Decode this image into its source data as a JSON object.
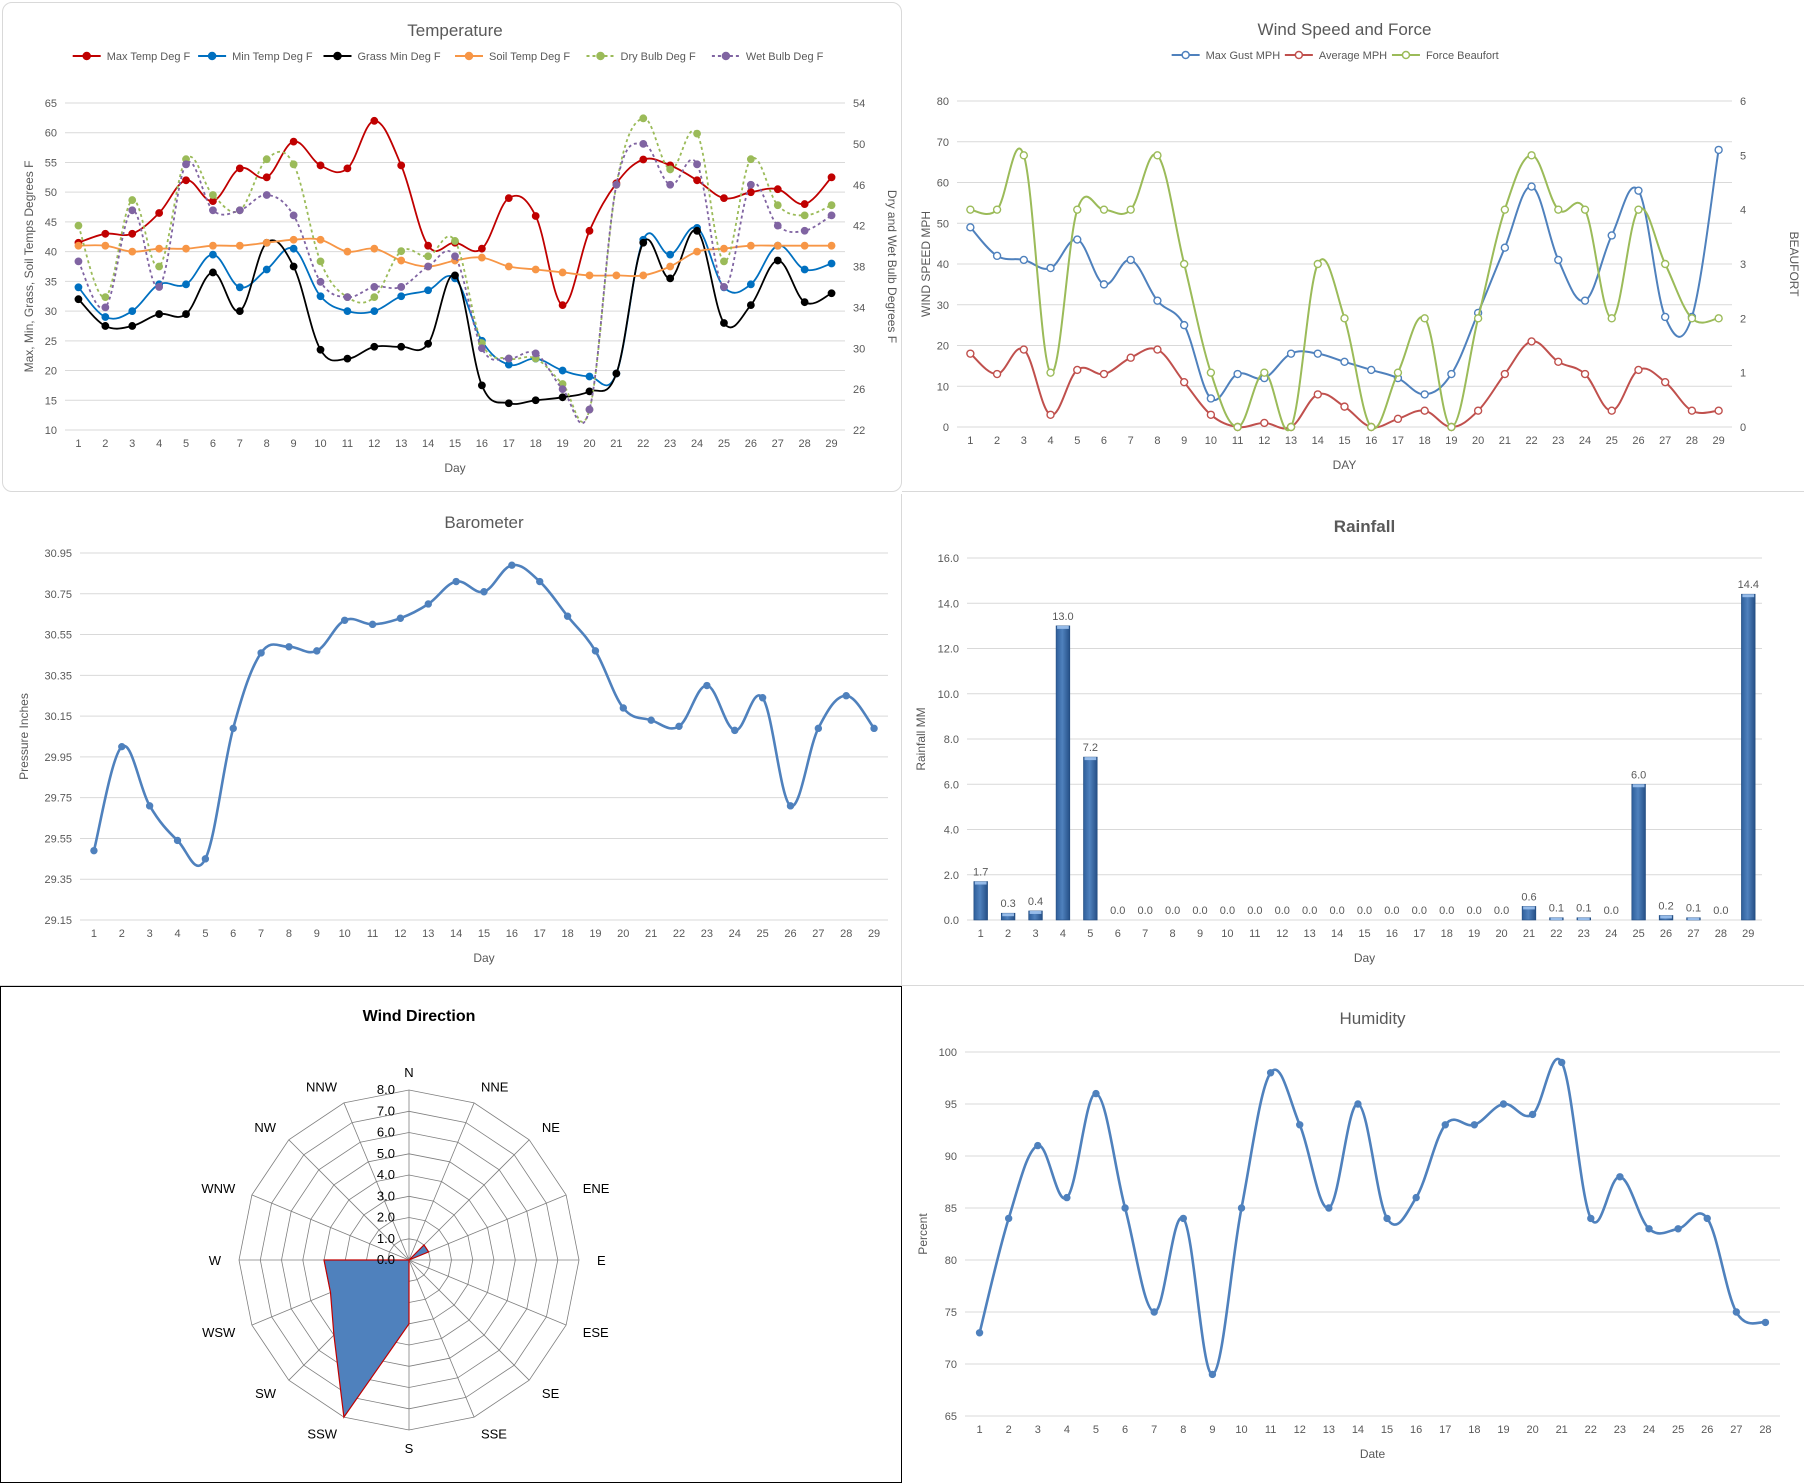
{
  "chart_data": [
    {
      "id": "temperature",
      "type": "line",
      "title": "Temperature",
      "xlabel": "Day",
      "ylabel": "Max, Min, Grass, Soil Temps Degrees F",
      "y2label": "Dry and Wet Bulb Degrees F",
      "ylim": [
        10,
        65
      ],
      "y2lim": [
        22,
        54
      ],
      "yticks": [
        "10",
        "15",
        "20",
        "25",
        "30",
        "35",
        "40",
        "45",
        "50",
        "55",
        "60",
        "65"
      ],
      "y2ticks": [
        "22",
        "26",
        "30",
        "34",
        "38",
        "42",
        "46",
        "50",
        "54"
      ],
      "x": [
        "1",
        "2",
        "3",
        "4",
        "5",
        "6",
        "7",
        "8",
        "9",
        "10",
        "11",
        "12",
        "13",
        "14",
        "15",
        "16",
        "17",
        "18",
        "19",
        "20",
        "21",
        "22",
        "23",
        "24",
        "25",
        "26",
        "27",
        "28",
        "29"
      ],
      "legend_position": "top",
      "grid": true,
      "series": [
        {
          "name": "Max Temp Deg F",
          "color": "#c00000",
          "axis": "left",
          "dash": false,
          "values": [
            41.5,
            43,
            43,
            46.5,
            52,
            48.5,
            54,
            52.5,
            58.5,
            54.5,
            54,
            62,
            54.5,
            41,
            41.5,
            40.5,
            49,
            46,
            31,
            43.5,
            51.5,
            55.5,
            54.5,
            52,
            49,
            50,
            50.5,
            48,
            52.5
          ]
        },
        {
          "name": "Min Temp Deg F",
          "color": "#0070c0",
          "axis": "left",
          "dash": false,
          "values": [
            34,
            29,
            30,
            34.5,
            34.5,
            39.5,
            34,
            37,
            40.5,
            32.5,
            30,
            30,
            32.5,
            33.5,
            35.5,
            25,
            21,
            22,
            20,
            19,
            19.5,
            42,
            39.5,
            44,
            34,
            34.5,
            41,
            37,
            38
          ]
        },
        {
          "name": "Grass Min Deg F",
          "color": "#000000",
          "axis": "left",
          "dash": false,
          "values": [
            32,
            27.5,
            27.5,
            29.5,
            29.5,
            36.5,
            30,
            41.5,
            37.5,
            23.5,
            22,
            24,
            24,
            24.5,
            36,
            17.5,
            14.5,
            15,
            15.5,
            16.5,
            19.5,
            41.5,
            35.5,
            43.5,
            28,
            31,
            38.5,
            31.5,
            33
          ]
        },
        {
          "name": "Soil Temp Deg F",
          "color": "#f79646",
          "axis": "left",
          "dash": false,
          "values": [
            41,
            41,
            40,
            40.5,
            40.5,
            41,
            41,
            41.5,
            42,
            42,
            40,
            40.5,
            38.5,
            37.5,
            38.5,
            39,
            37.5,
            37,
            36.5,
            36,
            36,
            36,
            37.5,
            40,
            40.5,
            41,
            41,
            41,
            41
          ]
        },
        {
          "name": "Dry Bulb Deg F",
          "color": "#9bbb59",
          "axis": "right",
          "dash": true,
          "values": [
            42,
            35,
            44.5,
            38,
            48.5,
            45,
            43.5,
            48.5,
            48,
            38.5,
            35,
            35,
            39.5,
            39,
            40.5,
            30.5,
            29,
            29,
            26.5,
            24,
            46,
            52.5,
            47.5,
            51,
            38.5,
            48.5,
            44,
            43,
            44
          ]
        },
        {
          "name": "Wet Bulb Deg F",
          "color": "#8064a2",
          "axis": "right",
          "dash": true,
          "values": [
            38.5,
            34,
            43.5,
            36,
            48,
            43.5,
            43.5,
            45,
            43,
            36.5,
            35,
            36,
            36,
            38,
            39,
            30,
            29,
            29.5,
            26,
            24,
            46,
            50,
            46,
            48,
            36,
            46,
            42,
            41.5,
            43
          ]
        }
      ]
    },
    {
      "id": "wind",
      "type": "line",
      "title": "Wind Speed and Force",
      "xlabel": "DAY",
      "ylabel": "WIND SPEED MPH",
      "y2label": "BEAUFORT",
      "ylim": [
        0,
        80
      ],
      "y2lim": [
        0,
        6
      ],
      "yticks": [
        "0",
        "10",
        "20",
        "30",
        "40",
        "50",
        "60",
        "70",
        "80"
      ],
      "y2ticks": [
        "0",
        "1",
        "2",
        "3",
        "4",
        "5",
        "6"
      ],
      "x": [
        "1",
        "2",
        "3",
        "4",
        "5",
        "6",
        "7",
        "8",
        "9",
        "10",
        "11",
        "12",
        "13",
        "14",
        "15",
        "16",
        "17",
        "18",
        "19",
        "20",
        "21",
        "22",
        "23",
        "24",
        "25",
        "26",
        "27",
        "28",
        "29"
      ],
      "legend_position": "top",
      "grid": true,
      "series": [
        {
          "name": "Max Gust MPH",
          "color": "#4f81bd",
          "axis": "left",
          "values": [
            49,
            42,
            41,
            39,
            46,
            35,
            41,
            31,
            25,
            7,
            13,
            12,
            18,
            18,
            16,
            14,
            12,
            8,
            13,
            28,
            44,
            59,
            41,
            31,
            47,
            58,
            27,
            27,
            68
          ]
        },
        {
          "name": "Average MPH",
          "color": "#c0504d",
          "axis": "left",
          "values": [
            18,
            13,
            19,
            3,
            14,
            13,
            17,
            19,
            11,
            3,
            0,
            1,
            0,
            8,
            5,
            0,
            2,
            4,
            0,
            4,
            13,
            21,
            16,
            13,
            4,
            14,
            11,
            4,
            4
          ]
        },
        {
          "name": "Force Beaufort",
          "color": "#9bbb59",
          "axis": "right",
          "values": [
            4,
            4,
            5,
            1,
            4,
            4,
            4,
            5,
            3,
            1,
            0,
            1,
            0,
            3,
            2,
            0,
            1,
            2,
            0,
            2,
            4,
            5,
            4,
            4,
            2,
            4,
            3,
            2,
            2
          ]
        }
      ]
    },
    {
      "id": "barometer",
      "type": "line",
      "title": "Barometer",
      "xlabel": "Day",
      "ylabel": "Pressure Inches",
      "ylim": [
        29.15,
        30.95
      ],
      "yticks": [
        "29.15",
        "29.35",
        "29.55",
        "29.75",
        "29.95",
        "30.15",
        "30.35",
        "30.55",
        "30.75",
        "30.95"
      ],
      "x": [
        "1",
        "2",
        "3",
        "4",
        "5",
        "6",
        "7",
        "8",
        "9",
        "10",
        "11",
        "12",
        "13",
        "14",
        "15",
        "16",
        "17",
        "18",
        "19",
        "20",
        "21",
        "22",
        "23",
        "24",
        "25",
        "26",
        "27",
        "28",
        "29"
      ],
      "grid": true,
      "series": [
        {
          "name": "",
          "color": "#4f81bd",
          "values": [
            29.49,
            30.0,
            29.71,
            29.54,
            29.45,
            30.09,
            30.46,
            30.49,
            30.47,
            30.62,
            30.6,
            30.63,
            30.7,
            30.81,
            30.76,
            30.89,
            30.81,
            30.64,
            30.47,
            30.19,
            30.13,
            30.1,
            30.3,
            30.08,
            30.24,
            29.71,
            30.09,
            30.25,
            30.09
          ]
        }
      ]
    },
    {
      "id": "rainfall",
      "type": "bar",
      "title": "Rainfall",
      "xlabel": "Day",
      "ylabel": "Rainfall MM",
      "ylim": [
        0,
        16
      ],
      "yticks": [
        "0.0",
        "2.0",
        "4.0",
        "6.0",
        "8.0",
        "10.0",
        "12.0",
        "14.0",
        "16.0"
      ],
      "categories": [
        "1",
        "2",
        "3",
        "4",
        "5",
        "6",
        "7",
        "8",
        "9",
        "10",
        "11",
        "12",
        "13",
        "14",
        "15",
        "16",
        "17",
        "18",
        "19",
        "20",
        "21",
        "22",
        "23",
        "24",
        "25",
        "26",
        "27",
        "28",
        "29"
      ],
      "values": [
        1.7,
        0.3,
        0.4,
        13.0,
        7.2,
        0.0,
        0.0,
        0.0,
        0.0,
        0.0,
        0.0,
        0.0,
        0.0,
        0.0,
        0.0,
        0.0,
        0.0,
        0.0,
        0.0,
        0.0,
        0.6,
        0.1,
        0.1,
        0.0,
        6.0,
        0.2,
        0.1,
        0.0,
        14.4
      ],
      "labels": [
        "1.7",
        "0.3",
        "0.4",
        "13.0",
        "7.2",
        "0.0",
        "0.0",
        "0.0",
        "0.0",
        "0.0",
        "0.0",
        "0.0",
        "0.0",
        "0.0",
        "0.0",
        "0.0",
        "0.0",
        "0.0",
        "0.0",
        "0.0",
        "0.6",
        "0.1",
        "0.1",
        "0.0",
        "6.0",
        "0.2",
        "0.1",
        "0.0",
        "14.4"
      ],
      "color": "#4f81bd",
      "grid": true
    },
    {
      "id": "wind_direction",
      "type": "radar",
      "title": "Wind Direction",
      "directions": [
        "N",
        "NNE",
        "NE",
        "ENE",
        "E",
        "ESE",
        "SE",
        "SSE",
        "S",
        "SSW",
        "SW",
        "WSW",
        "W",
        "WNW",
        "NW",
        "NNW"
      ],
      "rlim": [
        0,
        8
      ],
      "rticks": [
        "0.0",
        "1.0",
        "2.0",
        "3.0",
        "4.0",
        "5.0",
        "6.0",
        "7.0",
        "8.0"
      ],
      "values": [
        0,
        0,
        1,
        1,
        0,
        0,
        0,
        0,
        3,
        8,
        5,
        4,
        4,
        0,
        0,
        0
      ],
      "fill": "#4f81bd",
      "stroke": "#c00000"
    },
    {
      "id": "humidity",
      "type": "line",
      "title": "Humidity",
      "xlabel": "Date",
      "ylabel": "Percent",
      "ylim": [
        65,
        100
      ],
      "yticks": [
        "65",
        "70",
        "75",
        "80",
        "85",
        "90",
        "95",
        "100"
      ],
      "x": [
        "1",
        "2",
        "3",
        "4",
        "5",
        "6",
        "7",
        "8",
        "9",
        "10",
        "11",
        "12",
        "13",
        "14",
        "15",
        "16",
        "17",
        "18",
        "19",
        "20",
        "21",
        "22",
        "23",
        "24",
        "25",
        "26",
        "27",
        "28"
      ],
      "grid": true,
      "series": [
        {
          "name": "",
          "color": "#4f81bd",
          "values": [
            73,
            84,
            91,
            86,
            96,
            85,
            75,
            84,
            69,
            85,
            98,
            93,
            85,
            95,
            84,
            86,
            93,
            93,
            95,
            94,
            99,
            84,
            88,
            83,
            83,
            84,
            75,
            74
          ]
        }
      ]
    }
  ]
}
